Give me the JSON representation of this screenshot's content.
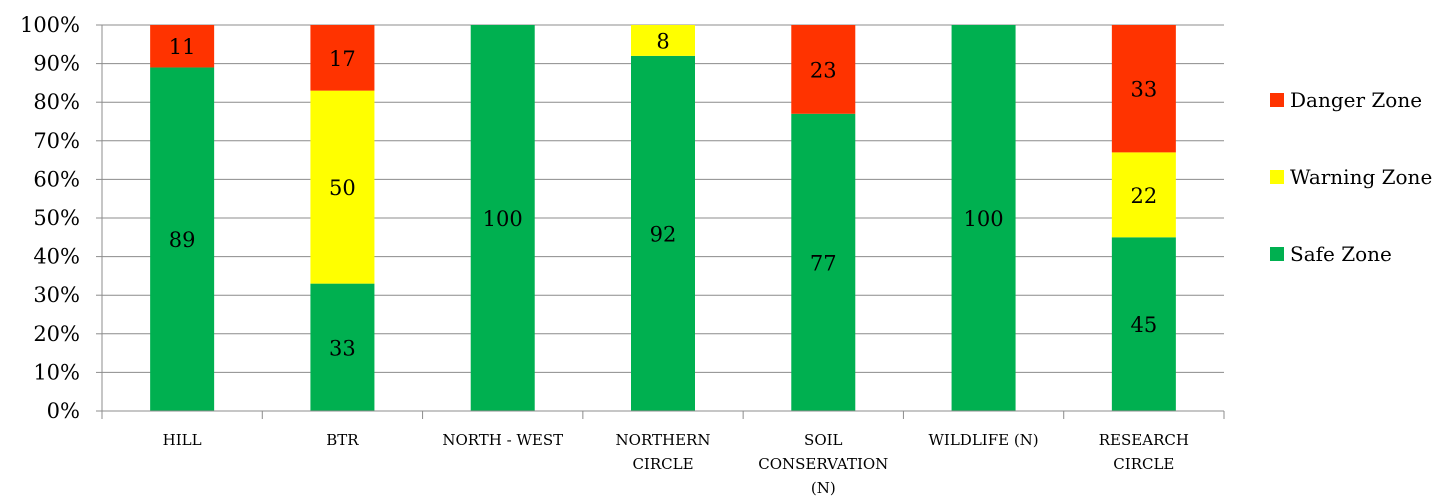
{
  "chart_data": {
    "type": "bar",
    "stacked": "percent",
    "title": "",
    "xlabel": "",
    "ylabel": "",
    "ylim": [
      0,
      100
    ],
    "y_tick_format": "percent",
    "y_ticks": [
      "0%",
      "10%",
      "20%",
      "30%",
      "40%",
      "50%",
      "60%",
      "70%",
      "80%",
      "90%",
      "100%"
    ],
    "grid": "horizontal",
    "legend_position": "right",
    "categories": [
      [
        "HILL"
      ],
      [
        "BTR"
      ],
      [
        "NORTH - WEST"
      ],
      [
        "NORTHERN",
        "CIRCLE"
      ],
      [
        "SOIL",
        "CONSERVATION",
        "(N)"
      ],
      [
        "WILDLIFE (N)"
      ],
      [
        "RESEARCH",
        "CIRCLE"
      ]
    ],
    "series": [
      {
        "name": "Safe Zone",
        "color": "#00B050",
        "values": [
          89,
          33,
          100,
          92,
          77,
          100,
          45
        ]
      },
      {
        "name": "Warning Zone",
        "color": "#FFFF00",
        "values": [
          0,
          50,
          0,
          8,
          0,
          0,
          22
        ]
      },
      {
        "name": "Danger Zone",
        "color": "#FF3300",
        "values": [
          11,
          17,
          0,
          0,
          23,
          0,
          33
        ]
      }
    ],
    "legend_order": [
      "Danger Zone",
      "Warning Zone",
      "Safe Zone"
    ]
  }
}
